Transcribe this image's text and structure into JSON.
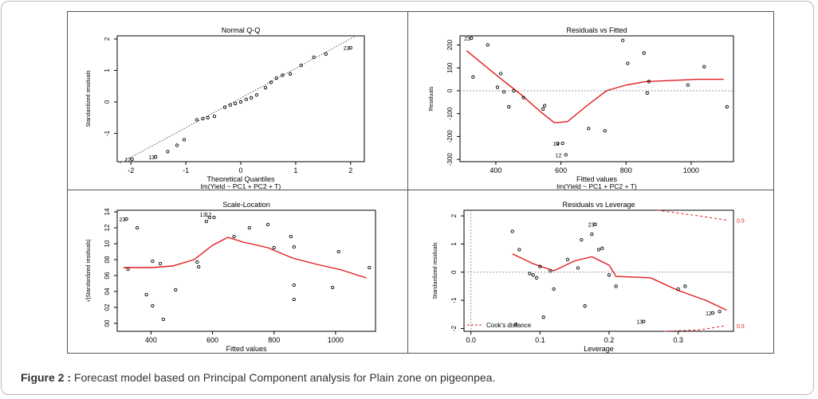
{
  "caption": {
    "label": "Figure 2 :",
    "text": "Forecast model based on Principal Component analysis for Plain zone on pigeonpea."
  },
  "colors": {
    "curve": "#e31a1c",
    "points": "#000000",
    "axis": "#000000",
    "reference": "#999999"
  },
  "chart_data": [
    {
      "id": "qq",
      "type": "scatter",
      "title": "Normal Q-Q",
      "xlabel": "Theoretical Quantiles",
      "sublabel": "lm(Yield ~ PC1 + PC2 + T)",
      "ylabel": "Standardized residuals",
      "xlim": [
        -2.25,
        2.25
      ],
      "ylim": [
        -1.9,
        2.1
      ],
      "xticks": [
        -2,
        -1,
        0,
        1,
        2
      ],
      "yticks": [
        -1,
        0,
        1,
        2
      ],
      "reference_line": {
        "x": [
          -2.2,
          2.1
        ],
        "y": [
          -1.95,
          2.1
        ]
      },
      "points": [
        [
          -1.98,
          -1.82
        ],
        [
          -1.55,
          -1.75
        ],
        [
          -1.33,
          -1.58
        ],
        [
          -1.16,
          -1.38
        ],
        [
          -1.03,
          -1.2
        ],
        [
          -0.8,
          -0.57
        ],
        [
          -0.69,
          -0.53
        ],
        [
          -0.6,
          -0.5
        ],
        [
          -0.48,
          -0.46
        ],
        [
          -0.29,
          -0.17
        ],
        [
          -0.19,
          -0.1
        ],
        [
          -0.1,
          -0.05
        ],
        [
          0.0,
          0.0
        ],
        [
          0.1,
          0.08
        ],
        [
          0.19,
          0.13
        ],
        [
          0.29,
          0.22
        ],
        [
          0.45,
          0.45
        ],
        [
          0.55,
          0.62
        ],
        [
          0.65,
          0.76
        ],
        [
          0.76,
          0.85
        ],
        [
          0.9,
          0.89
        ],
        [
          1.1,
          1.16
        ],
        [
          1.33,
          1.42
        ],
        [
          1.55,
          1.52
        ],
        [
          2.0,
          1.72
        ]
      ],
      "labels": [
        {
          "text": "12",
          "x": -1.98,
          "y": -1.82
        },
        {
          "text": "13",
          "x": -1.55,
          "y": -1.75
        },
        {
          "text": "23",
          "x": 2.0,
          "y": 1.72
        }
      ]
    },
    {
      "id": "resfit",
      "type": "scatter",
      "title": "Residuals vs Fitted",
      "xlabel": "Fitted values",
      "sublabel": "lm(Yield ~ PC1 + PC2 + T)",
      "ylabel": "Residuals",
      "xlim": [
        290,
        1130
      ],
      "ylim": [
        -310,
        240
      ],
      "xticks": [
        400,
        600,
        800,
        1000
      ],
      "yticks": [
        -300,
        -200,
        -100,
        0,
        100,
        200
      ],
      "zero_line": 0,
      "points": [
        [
          325,
          230
        ],
        [
          330,
          60
        ],
        [
          375,
          200
        ],
        [
          405,
          15
        ],
        [
          415,
          75
        ],
        [
          425,
          -5
        ],
        [
          440,
          -70
        ],
        [
          455,
          0
        ],
        [
          485,
          -30
        ],
        [
          545,
          -80
        ],
        [
          550,
          -65
        ],
        [
          590,
          -230
        ],
        [
          605,
          -230
        ],
        [
          615,
          -280
        ],
        [
          685,
          -165
        ],
        [
          735,
          -175
        ],
        [
          790,
          220
        ],
        [
          805,
          120
        ],
        [
          855,
          165
        ],
        [
          865,
          -10
        ],
        [
          870,
          40
        ],
        [
          990,
          25
        ],
        [
          1040,
          105
        ],
        [
          1110,
          -70
        ]
      ],
      "smooth": [
        [
          310,
          175
        ],
        [
          400,
          70
        ],
        [
          480,
          -20
        ],
        [
          540,
          -95
        ],
        [
          580,
          -140
        ],
        [
          620,
          -135
        ],
        [
          680,
          -65
        ],
        [
          740,
          0
        ],
        [
          800,
          25
        ],
        [
          860,
          40
        ],
        [
          940,
          45
        ],
        [
          1020,
          50
        ],
        [
          1100,
          50
        ]
      ],
      "labels": [
        {
          "text": "23",
          "x": 325,
          "y": 230
        },
        {
          "text": "13",
          "x": 598,
          "y": -230
        },
        {
          "text": "12",
          "x": 605,
          "y": -280
        }
      ]
    },
    {
      "id": "scaleloc",
      "type": "scatter",
      "title": "Scale-Location",
      "xlabel": "Fitted values",
      "sublabel": "lm(Yield ~ PC1 + PC2 + T)",
      "ylabel": "√|Standardized residuals|",
      "xlim": [
        290,
        1130
      ],
      "ylim": [
        -0.1,
        1.42
      ],
      "xticks": [
        400,
        600,
        800,
        1000
      ],
      "yticks": [
        "00",
        "02",
        "04",
        "06",
        "08",
        "10",
        "12",
        "14"
      ],
      "ytick_values": [
        0,
        0.2,
        0.4,
        0.6,
        0.8,
        1.0,
        1.2,
        1.4
      ],
      "points": [
        [
          320,
          1.31
        ],
        [
          325,
          0.68
        ],
        [
          355,
          1.2
        ],
        [
          385,
          0.36
        ],
        [
          405,
          0.22
        ],
        [
          405,
          0.78
        ],
        [
          430,
          0.75
        ],
        [
          440,
          0.05
        ],
        [
          480,
          0.42
        ],
        [
          550,
          0.77
        ],
        [
          555,
          0.71
        ],
        [
          580,
          1.28
        ],
        [
          590,
          1.33
        ],
        [
          605,
          1.33
        ],
        [
          670,
          1.09
        ],
        [
          720,
          1.2
        ],
        [
          780,
          1.24
        ],
        [
          800,
          0.95
        ],
        [
          855,
          1.09
        ],
        [
          865,
          0.48
        ],
        [
          865,
          0.3
        ],
        [
          865,
          0.96
        ],
        [
          990,
          0.45
        ],
        [
          1010,
          0.9
        ],
        [
          1110,
          0.7
        ]
      ],
      "smooth": [
        [
          310,
          0.7
        ],
        [
          400,
          0.7
        ],
        [
          470,
          0.72
        ],
        [
          540,
          0.8
        ],
        [
          600,
          0.98
        ],
        [
          650,
          1.08
        ],
        [
          700,
          1.02
        ],
        [
          780,
          0.95
        ],
        [
          860,
          0.82
        ],
        [
          940,
          0.74
        ],
        [
          1020,
          0.67
        ],
        [
          1100,
          0.57
        ]
      ],
      "labels": [
        {
          "text": "23",
          "x": 320,
          "y": 1.31
        },
        {
          "text": "13",
          "x": 582,
          "y": 1.37
        },
        {
          "text": "12",
          "x": 600,
          "y": 1.37
        }
      ]
    },
    {
      "id": "resleverage",
      "type": "scatter",
      "title": "Residuals vs Leverage",
      "xlabel": "Leverage",
      "sublabel": "lm(Yield ~ PC1 + PC2 + T)",
      "ylabel": "Standardized residuals",
      "xlim": [
        -0.01,
        0.38
      ],
      "ylim": [
        -2.1,
        2.2
      ],
      "xticks": [
        0.0,
        0.1,
        0.2,
        0.3
      ],
      "xticklabels": [
        "0.0",
        "0.1",
        "0.2",
        "0.3"
      ],
      "yticks": [
        -2,
        -1,
        0,
        1,
        2
      ],
      "zero_line": 0,
      "legend": "Cook's distance",
      "cook_label_top": "0.5",
      "cook_label_bottom": "0.5",
      "points": [
        [
          0.06,
          1.45
        ],
        [
          0.065,
          -1.85
        ],
        [
          0.07,
          0.8
        ],
        [
          0.085,
          -0.05
        ],
        [
          0.09,
          -0.1
        ],
        [
          0.095,
          -0.2
        ],
        [
          0.1,
          0.2
        ],
        [
          0.105,
          -1.6
        ],
        [
          0.115,
          0.05
        ],
        [
          0.12,
          -0.6
        ],
        [
          0.14,
          0.45
        ],
        [
          0.155,
          0.15
        ],
        [
          0.16,
          1.15
        ],
        [
          0.165,
          -1.2
        ],
        [
          0.175,
          1.35
        ],
        [
          0.18,
          1.7
        ],
        [
          0.185,
          0.8
        ],
        [
          0.19,
          0.85
        ],
        [
          0.2,
          -0.1
        ],
        [
          0.21,
          -0.5
        ],
        [
          0.25,
          -1.75
        ],
        [
          0.3,
          -0.6
        ],
        [
          0.31,
          -0.5
        ],
        [
          0.35,
          -1.45
        ],
        [
          0.36,
          -1.4
        ]
      ],
      "smooth": [
        [
          0.06,
          0.65
        ],
        [
          0.09,
          0.3
        ],
        [
          0.12,
          0.05
        ],
        [
          0.15,
          0.4
        ],
        [
          0.175,
          0.55
        ],
        [
          0.2,
          0.25
        ],
        [
          0.21,
          -0.15
        ],
        [
          0.26,
          -0.2
        ],
        [
          0.3,
          -0.65
        ],
        [
          0.34,
          -1.0
        ],
        [
          0.37,
          -1.35
        ]
      ],
      "cook_top": [
        [
          0.27,
          2.2
        ],
        [
          0.33,
          2.0
        ],
        [
          0.37,
          1.85
        ]
      ],
      "cook_bottom": [
        [
          0.28,
          -2.25
        ],
        [
          0.33,
          -2.05
        ],
        [
          0.37,
          -1.9
        ]
      ],
      "labels": [
        {
          "text": "23",
          "x": 0.18,
          "y": 1.7
        },
        {
          "text": "13",
          "x": 0.25,
          "y": -1.75
        },
        {
          "text": "12",
          "x": 0.35,
          "y": -1.45
        }
      ]
    }
  ]
}
